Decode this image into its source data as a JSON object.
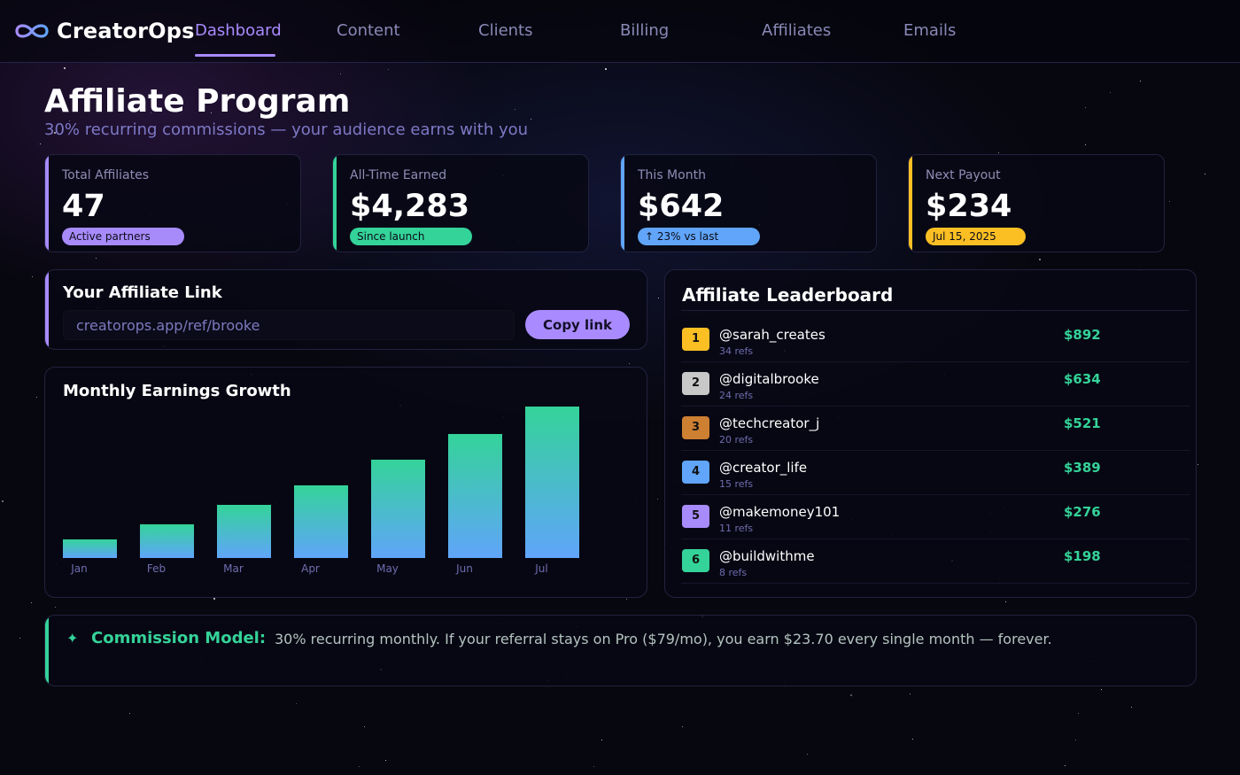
{
  "app": {
    "name": "CreatorOps",
    "logo_icon": "infinity-icon"
  },
  "nav": {
    "items": [
      {
        "label": "Dashboard",
        "active": true
      },
      {
        "label": "Content",
        "active": false
      },
      {
        "label": "Clients",
        "active": false
      },
      {
        "label": "Billing",
        "active": false
      },
      {
        "label": "Affiliates",
        "active": false
      },
      {
        "label": "Emails",
        "active": false
      }
    ]
  },
  "header": {
    "title": "Affiliate Program",
    "subtitle": "30% recurring commissions — your audience earns with you"
  },
  "stats": [
    {
      "label": "Total Affiliates",
      "value": "47",
      "badge": "Active partners",
      "color": "#a78bfa"
    },
    {
      "label": "All-Time Earned",
      "value": "$4,283",
      "badge": "Since launch",
      "color": "#34d399"
    },
    {
      "label": "This Month",
      "value": "$642",
      "badge": "↑ 23% vs last",
      "color": "#60a5fa"
    },
    {
      "label": "Next Payout",
      "value": "$234",
      "badge": "Jul 15, 2025",
      "color": "#fbbf24"
    }
  ],
  "affiliate_link": {
    "title": "Your Affiliate Link",
    "url": "creatorops.app/ref/brooke",
    "copy_label": "Copy link"
  },
  "chart": {
    "title": "Monthly Earnings Growth"
  },
  "chart_data": {
    "type": "bar",
    "title": "Monthly Earnings Growth",
    "categories": [
      "Jan",
      "Feb",
      "Mar",
      "Apr",
      "May",
      "Jun",
      "Jul"
    ],
    "values": [
      21,
      38,
      60,
      82,
      111,
      140,
      171
    ],
    "xlabel": "",
    "ylabel": "",
    "ylim": [
      0,
      171
    ],
    "grid": false,
    "legend": "none",
    "colors": {
      "top": "#34d399",
      "bottom": "#60a5fa"
    }
  },
  "leaderboard": {
    "title": "Affiliate Leaderboard",
    "rows": [
      {
        "rank": "1",
        "handle": "@sarah_creates",
        "refs": "34 refs",
        "amount": "$892",
        "color": "#fbbf24"
      },
      {
        "rank": "2",
        "handle": "@digitalbrooke",
        "refs": "24 refs",
        "amount": "$634",
        "color": "#c8c8c8"
      },
      {
        "rank": "3",
        "handle": "@techcreator_j",
        "refs": "20 refs",
        "amount": "$521",
        "color": "#cd7f32"
      },
      {
        "rank": "4",
        "handle": "@creator_life",
        "refs": "15 refs",
        "amount": "$389",
        "color": "#60a5fa"
      },
      {
        "rank": "5",
        "handle": "@makemoney101",
        "refs": "11 refs",
        "amount": "$276",
        "color": "#a78bfa"
      },
      {
        "rank": "6",
        "handle": "@buildwithme",
        "refs": "8 refs",
        "amount": "$198",
        "color": "#34d399"
      }
    ]
  },
  "commission": {
    "icon": "sparkle-icon",
    "star": "✦",
    "label": "Commission Model:",
    "text": "30% recurring monthly. If your referral stays on Pro ($79/mo), you earn $23.70 every single month — forever."
  },
  "theme": {
    "accent": "#a98bff",
    "green": "#34d399",
    "blue": "#60a5fa",
    "amber": "#fbbf24"
  }
}
